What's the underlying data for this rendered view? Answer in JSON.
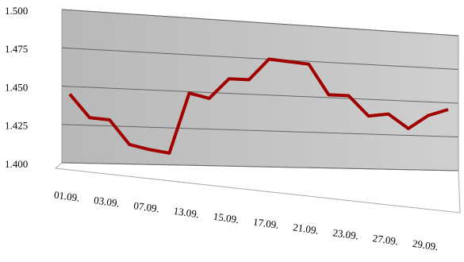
{
  "chart_data": {
    "type": "line",
    "categories": [
      "01.09.",
      null,
      "03.09.",
      null,
      "07.09.",
      null,
      "13.09.",
      null,
      "15.09.",
      null,
      "17.09.",
      null,
      "21.09.",
      null,
      "23.09.",
      null,
      "27.09.",
      null,
      "29.09.",
      null
    ],
    "series": [
      {
        "color": "#a00000",
        "values": [
          1.445,
          1.43,
          1.429,
          1.413,
          1.41,
          1.408,
          1.449,
          1.446,
          1.46,
          1.46,
          1.475,
          1.474,
          1.473,
          1.452,
          1.452,
          1.438,
          1.44,
          1.43,
          1.44,
          1.445
        ]
      }
    ],
    "ylim": [
      1.4,
      1.5
    ],
    "yticks": [
      {
        "value": 1.4,
        "label": "1.400"
      },
      1.425,
      {
        "value": 1.45,
        "label": "1.450"
      },
      1.475,
      {
        "value": 1.5,
        "label": "1.500"
      }
    ],
    "grid": true
  }
}
